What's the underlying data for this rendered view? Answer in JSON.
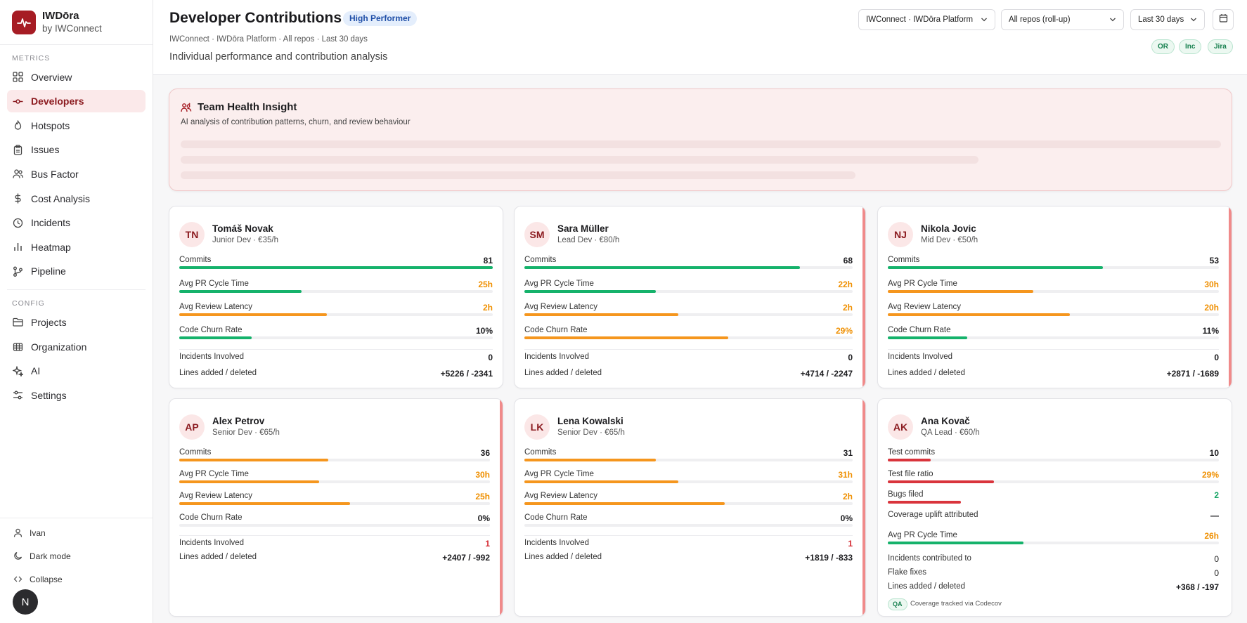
{
  "colors": {
    "accent": "#a61c24",
    "active_bg": "#fbe9ea",
    "good": "#15b26b",
    "warn": "#f5961e",
    "bad": "#d9343c"
  },
  "brand": {
    "name": "IWDōra",
    "by": "by IWConnect",
    "icon": "pulse-icon"
  },
  "sidebar": {
    "metrics_label": "METRICS",
    "metrics_items": [
      {
        "label": "Overview",
        "icon": "grid-icon"
      },
      {
        "label": "Developers",
        "icon": "commit-icon",
        "active": true
      },
      {
        "label": "Hotspots",
        "icon": "flame-icon"
      },
      {
        "label": "Issues",
        "icon": "clipboard-icon"
      },
      {
        "label": "Bus Factor",
        "icon": "users-icon"
      },
      {
        "label": "Cost Analysis",
        "icon": "dollar-icon"
      },
      {
        "label": "Incidents",
        "icon": "clock-icon"
      },
      {
        "label": "Heatmap",
        "icon": "bar-chart-icon"
      },
      {
        "label": "Pipeline",
        "icon": "git-branch-icon"
      }
    ],
    "config_label": "CONFIG",
    "config_items": [
      {
        "label": "Projects",
        "icon": "folder-icon"
      },
      {
        "label": "Organization",
        "icon": "globe-icon"
      },
      {
        "label": "AI",
        "icon": "sparkles-icon"
      },
      {
        "label": "Settings",
        "icon": "sliders-icon"
      }
    ],
    "user": "Ivan",
    "dark_mode": "Dark mode",
    "collapse": "Collapse",
    "avatar_initial": "N"
  },
  "header": {
    "title": "Developer Contributions",
    "badge": "High Performer",
    "breadcrumb": "IWConnect · IWDōra Platform · All repos · Last 30 days",
    "subtitle": "Individual performance and contribution analysis",
    "org_select": "IWConnect · IWDōra Platform",
    "repo_select": "All repos (roll-up)",
    "range_select": "Last 30 days",
    "sources": [
      "OR",
      "Inc",
      "Jira"
    ]
  },
  "insight": {
    "title": "Team Health Insight",
    "subtitle": "AI analysis of contribution patterns, churn, and review behaviour"
  },
  "developers": [
    {
      "initials": "TN",
      "name": "Tomáš Novak",
      "role": "Junior Dev · €35/h",
      "commits": "81",
      "commits_fill": 1.0,
      "pr_cycle": "25h",
      "pr_fill": 0.39,
      "review": "2h",
      "review_fill": 0.47,
      "churn": "10%",
      "churn_fill": 0.23,
      "incidents": "0",
      "lines": "+5226 / -2341"
    },
    {
      "initials": "SM",
      "name": "Sara Müller",
      "role": "Lead Dev · €80/h",
      "commits": "68",
      "commits_fill": 0.84,
      "pr_cycle": "22h",
      "pr_fill": 0.4,
      "review": "2h",
      "review_fill": 0.47,
      "churn": "29%",
      "churn_fill": 0.62,
      "incidents": "0",
      "lines": "+4714 / -2247"
    },
    {
      "initials": "NJ",
      "name": "Nikola Jovic",
      "role": "Mid Dev · €50/h",
      "commits": "53",
      "commits_fill": 0.65,
      "pr_cycle": "30h",
      "pr_fill": 0.44,
      "review": "20h",
      "review_fill": 0.55,
      "churn": "11%",
      "churn_fill": 0.24,
      "incidents": "0",
      "lines": "+2871 / -1689"
    },
    {
      "initials": "AP",
      "name": "Alex Petrov",
      "role": "Senior Dev · €65/h",
      "commits": "36",
      "commits_fill": 0.48,
      "pr_cycle": "30h",
      "pr_fill": 0.45,
      "review": "25h",
      "review_fill": 0.55,
      "churn": "0%",
      "churn_fill": 0,
      "incidents": "1",
      "lines": "+2407 / -992"
    },
    {
      "initials": "LK",
      "name": "Lena Kowalski",
      "role": "Senior Dev · €65/h",
      "commits": "31",
      "commits_fill": 0.4,
      "pr_cycle": "31h",
      "pr_fill": 0.47,
      "review": "2h",
      "review_fill": 0.61,
      "churn": "0%",
      "churn_fill": 0,
      "incidents": "1",
      "lines": "+1819 / -833"
    }
  ],
  "qa": {
    "initials": "AK",
    "name": "Ana Kovač",
    "role": "QA Lead · €60/h",
    "metrics": [
      {
        "label": "Test commits",
        "value": "10",
        "fill": 0.13,
        "color": "red"
      },
      {
        "label": "Test file ratio",
        "value": "29%",
        "fill": 0.32,
        "color": "red"
      },
      {
        "label": "Bugs filed",
        "value": "2",
        "fill": 0.22,
        "color": "red"
      },
      {
        "label": "Coverage uplift attributed",
        "value": "—",
        "fill": 0,
        "color": "red"
      },
      {
        "label": "Avg PR Cycle Time",
        "value": "26h",
        "fill": 0.41,
        "color": "green"
      }
    ],
    "incidents_label": "Incidents contributed to",
    "incidents": "0",
    "flake_label": "Flake fixes",
    "flake": "0",
    "lines": "+368 / -197",
    "badge": "QA",
    "note": "Coverage tracked via Codecov"
  },
  "labels": {
    "commits": "Commits",
    "pr_cycle": "Avg PR Cycle Time",
    "review": "Avg Review Latency",
    "churn": "Code Churn Rate",
    "incidents": "Incidents Involved",
    "lines": "Lines added / deleted"
  }
}
